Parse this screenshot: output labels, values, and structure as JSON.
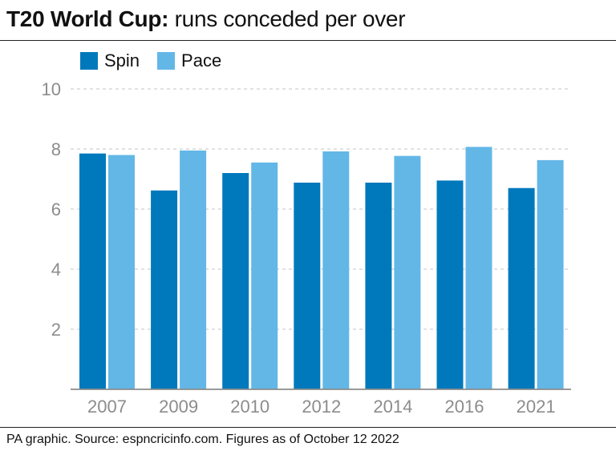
{
  "header": {
    "title_bold": "T20 World Cup:",
    "title_rest": " runs conceded per over"
  },
  "legend": [
    {
      "label": "Spin",
      "color": "#0079bc"
    },
    {
      "label": "Pace",
      "color": "#63b7e6"
    }
  ],
  "footer": {
    "source": "PA graphic. Source: espncricinfo.com. Figures as of October 12 2022"
  },
  "chart_data": {
    "type": "bar",
    "categories": [
      "2007",
      "2009",
      "2010",
      "2012",
      "2014",
      "2016",
      "2021"
    ],
    "series": [
      {
        "name": "Spin",
        "values": [
          7.85,
          6.62,
          7.2,
          6.88,
          6.88,
          6.95,
          6.7
        ],
        "color": "#0079bc"
      },
      {
        "name": "Pace",
        "values": [
          7.8,
          7.95,
          7.55,
          7.92,
          7.77,
          8.07,
          7.63
        ],
        "color": "#63b7e6"
      }
    ],
    "yticks": [
      "2",
      "4",
      "6",
      "8",
      "10"
    ],
    "ylim": [
      0,
      10
    ],
    "grid": true,
    "legend_position": "top-left"
  }
}
